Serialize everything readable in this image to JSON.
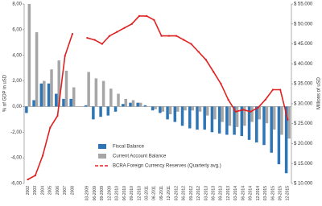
{
  "chart_data": {
    "type": "bar",
    "y_label": "% of GDP in uSD",
    "y2_label": "Millions of uSD",
    "categories": [
      "2002",
      "2003",
      "2004",
      "2005",
      "2006",
      "2007",
      "2008",
      null,
      "03-2009",
      "06-2009",
      "09-2009",
      "12-2009",
      "03-2010",
      "06-2010",
      "09-2010",
      "12-2010",
      "03-2011",
      "06-2011",
      "09-2011",
      "12-2011",
      "03-2012",
      "06-2012",
      "09-2012",
      "12-2012",
      "03-2013",
      "06-2013",
      "09-2013",
      "12-2013",
      "03-2014",
      "06-2014",
      "09-2014",
      "12-2014",
      "03-2015",
      "06-2015",
      "09-2015",
      "12-2015"
    ],
    "series": [
      {
        "name": "Fiscal Balance",
        "color": "#2e75b6",
        "values": [
          -0.5,
          0.5,
          1.8,
          1.8,
          1.0,
          0.6,
          0.6,
          null,
          0.1,
          -1.0,
          -0.8,
          -0.7,
          -0.4,
          0.2,
          0.3,
          0.3,
          0.1,
          -0.3,
          -0.5,
          -1.0,
          -1.2,
          -1.5,
          -1.7,
          -1.8,
          -1.8,
          -2.0,
          -2.1,
          -2.2,
          -2.2,
          -2.3,
          -2.6,
          -2.8,
          -3.0,
          -3.6,
          -4.5,
          -5.2
        ]
      },
      {
        "name": "Current Account Balance",
        "color": "#a6a6a6",
        "values": [
          8.0,
          5.8,
          2.0,
          2.9,
          3.6,
          2.8,
          1.5,
          null,
          2.7,
          2.2,
          2.0,
          1.4,
          1.0,
          0.6,
          0.5,
          0.3,
          0.0,
          -0.2,
          -0.4,
          -0.6,
          -0.4,
          -0.3,
          -0.3,
          -0.4,
          -0.7,
          -1.0,
          -1.2,
          -1.5,
          -1.6,
          -1.5,
          -1.2,
          -1.0,
          -1.3,
          -1.8,
          -2.2,
          -2.5
        ]
      },
      {
        "name": "BCRA Foreign Currency Reserves (Quarterly avg.)",
        "color": "#e02020",
        "axis": "y2",
        "line": true,
        "values": [
          11000,
          12000,
          17000,
          24000,
          27000,
          42000,
          47500,
          null,
          46500,
          46000,
          45000,
          47000,
          48000,
          49000,
          50000,
          52000,
          52000,
          51000,
          47000,
          47000,
          47000,
          46000,
          45000,
          43000,
          41000,
          38000,
          35000,
          31000,
          28000,
          28500,
          28000,
          29000,
          31000,
          33500,
          33500,
          26000
        ]
      }
    ],
    "ylim": [
      -6,
      8
    ],
    "yticks": [
      {
        "value": -6,
        "label": "-6,00"
      },
      {
        "value": -4,
        "label": "-4,00"
      },
      {
        "value": -2,
        "label": "-2,00"
      },
      {
        "value": 0,
        "label": "0,00"
      },
      {
        "value": 2,
        "label": "2,00"
      },
      {
        "value": 4,
        "label": "4,00"
      },
      {
        "value": 6,
        "label": "6,00"
      },
      {
        "value": 8,
        "label": "8,00"
      }
    ],
    "y2lim": [
      10000,
      55000
    ],
    "y2ticks": [
      {
        "value": 10000,
        "label": "$ 10.000"
      },
      {
        "value": 15000,
        "label": "$ 15.000"
      },
      {
        "value": 20000,
        "label": "$ 20.000"
      },
      {
        "value": 25000,
        "label": "$ 25.000"
      },
      {
        "value": 30000,
        "label": "$ 30.000"
      },
      {
        "value": 35000,
        "label": "$ 35.000"
      },
      {
        "value": 40000,
        "label": "$ 40.000"
      },
      {
        "value": 45000,
        "label": "$ 45.000"
      },
      {
        "value": 50000,
        "label": "$ 50.000"
      },
      {
        "value": 55000,
        "label": "$ 55.000"
      }
    ],
    "grid": false,
    "legend": "lower left"
  }
}
